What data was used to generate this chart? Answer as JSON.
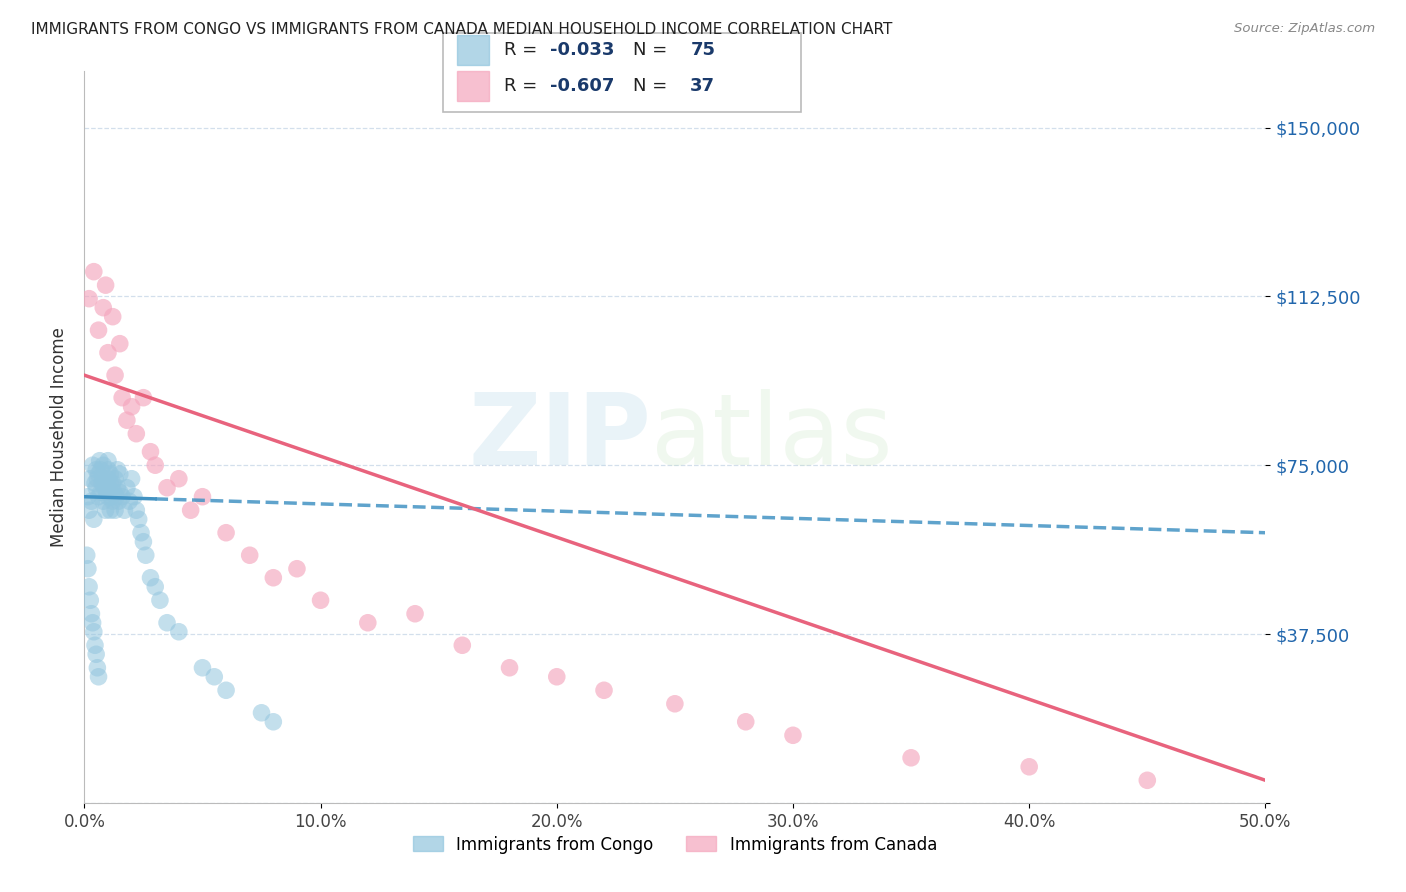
{
  "title": "IMMIGRANTS FROM CONGO VS IMMIGRANTS FROM CANADA MEDIAN HOUSEHOLD INCOME CORRELATION CHART",
  "source": "Source: ZipAtlas.com",
  "ylabel": "Median Household Income",
  "xlim": [
    0.0,
    50.0
  ],
  "ylim": [
    0,
    162500
  ],
  "yticks": [
    0,
    37500,
    75000,
    112500,
    150000
  ],
  "ytick_labels": [
    "",
    "$37,500",
    "$75,000",
    "$112,500",
    "$150,000"
  ],
  "xticks": [
    0.0,
    10.0,
    20.0,
    30.0,
    40.0,
    50.0
  ],
  "xtick_labels": [
    "0.0%",
    "10.0%",
    "20.0%",
    "30.0%",
    "40.0%",
    "50.0%"
  ],
  "congo_R": -0.033,
  "congo_N": 75,
  "canada_R": -0.607,
  "canada_N": 37,
  "congo_color": "#92c5de",
  "canada_color": "#f4a6bd",
  "congo_line_color": "#4393c3",
  "canada_line_color": "#e8637d",
  "legend_R_color": "#1a3a6b",
  "legend_N_color": "#2166ac",
  "watermark_zip_color": "#92c5de",
  "watermark_atlas_color": "#b8ddb0",
  "congo_scatter_x": [
    0.15,
    0.2,
    0.25,
    0.3,
    0.35,
    0.4,
    0.45,
    0.5,
    0.5,
    0.55,
    0.6,
    0.6,
    0.65,
    0.7,
    0.7,
    0.75,
    0.8,
    0.8,
    0.8,
    0.85,
    0.9,
    0.9,
    0.95,
    1.0,
    1.0,
    1.0,
    1.0,
    1.05,
    1.1,
    1.1,
    1.1,
    1.15,
    1.2,
    1.2,
    1.25,
    1.3,
    1.3,
    1.35,
    1.4,
    1.4,
    1.45,
    1.5,
    1.5,
    1.6,
    1.7,
    1.8,
    1.9,
    2.0,
    2.1,
    2.2,
    2.3,
    2.4,
    2.5,
    2.6,
    2.8,
    3.0,
    3.2,
    3.5,
    4.0,
    5.0,
    5.5,
    6.0,
    7.5,
    8.0,
    0.1,
    0.15,
    0.2,
    0.25,
    0.3,
    0.35,
    0.4,
    0.45,
    0.5,
    0.55,
    0.6
  ],
  "congo_scatter_y": [
    68000,
    65000,
    72000,
    67000,
    75000,
    63000,
    71000,
    70000,
    74000,
    72000,
    68000,
    73000,
    76000,
    69000,
    74000,
    71000,
    67000,
    72000,
    75000,
    70000,
    65000,
    71000,
    69000,
    72000,
    68000,
    74000,
    76000,
    70000,
    65000,
    71000,
    73000,
    68000,
    67000,
    71000,
    69000,
    65000,
    72000,
    68000,
    70000,
    74000,
    67000,
    69000,
    73000,
    68000,
    65000,
    70000,
    67000,
    72000,
    68000,
    65000,
    63000,
    60000,
    58000,
    55000,
    50000,
    48000,
    45000,
    40000,
    38000,
    30000,
    28000,
    25000,
    20000,
    18000,
    55000,
    52000,
    48000,
    45000,
    42000,
    40000,
    38000,
    35000,
    33000,
    30000,
    28000
  ],
  "canada_scatter_x": [
    0.2,
    0.4,
    0.6,
    0.8,
    0.9,
    1.0,
    1.2,
    1.3,
    1.5,
    1.6,
    1.8,
    2.0,
    2.2,
    2.5,
    2.8,
    3.0,
    3.5,
    4.0,
    4.5,
    5.0,
    6.0,
    7.0,
    8.0,
    9.0,
    10.0,
    12.0,
    14.0,
    16.0,
    18.0,
    20.0,
    22.0,
    25.0,
    28.0,
    30.0,
    35.0,
    40.0,
    45.0
  ],
  "canada_scatter_y": [
    112000,
    118000,
    105000,
    110000,
    115000,
    100000,
    108000,
    95000,
    102000,
    90000,
    85000,
    88000,
    82000,
    90000,
    78000,
    75000,
    70000,
    72000,
    65000,
    68000,
    60000,
    55000,
    50000,
    52000,
    45000,
    40000,
    42000,
    35000,
    30000,
    28000,
    25000,
    22000,
    18000,
    15000,
    10000,
    8000,
    5000
  ],
  "congo_trendline_x0": 0.0,
  "congo_trendline_x1": 50.0,
  "congo_trendline_y0": 68000,
  "congo_trendline_y1": 60000,
  "canada_trendline_x0": 0.0,
  "canada_trendline_x1": 50.0,
  "canada_trendline_y0": 95000,
  "canada_trendline_y1": 5000
}
